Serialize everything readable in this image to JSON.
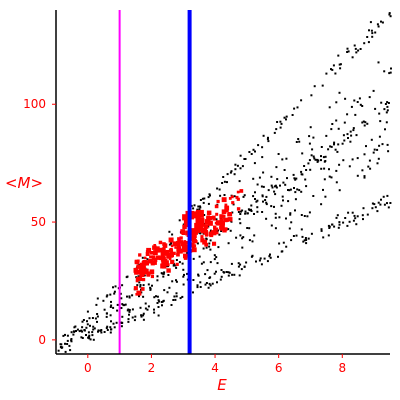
{
  "chart_data": {
    "type": "scatter",
    "xlabel": "E",
    "ylabel": "<M>",
    "xlim": [
      -1,
      9.5
    ],
    "ylim": [
      -6,
      140
    ],
    "x_ticks": [
      0,
      2,
      4,
      6,
      8
    ],
    "y_ticks": [
      0,
      50,
      100
    ],
    "grid": false,
    "colors": {
      "axis": "#000000",
      "ticks": "#ff0000",
      "gray_points": "#000000",
      "red_points": "#ff0000",
      "magenta_line": "#ff00ff",
      "blue_line": "#0000ff"
    },
    "vertical_lines": [
      {
        "x": 1.0,
        "color": "#ff00ff"
      },
      {
        "x": 3.2,
        "color": "#0000ff"
      }
    ],
    "series": [
      {
        "color": "#000000",
        "marker": "dot",
        "bands": [
          {
            "x0": -1.0,
            "y0": -4,
            "x1": 9.5,
            "y1": 140,
            "count": 150,
            "spread": 3
          },
          {
            "x0": -1.0,
            "y0": -4,
            "x1": 9.5,
            "y1": 100,
            "count": 170,
            "spread": 3
          },
          {
            "x0": -1.0,
            "y0": -4,
            "x1": 9.5,
            "y1": 60,
            "count": 170,
            "spread": 3
          },
          {
            "x0": 0.0,
            "y0": 5,
            "x1": 9.5,
            "y1": 85,
            "count": 180,
            "spread": 10
          },
          {
            "x0": 3.0,
            "y0": 40,
            "x1": 9.5,
            "y1": 115,
            "count": 90,
            "spread": 8
          }
        ]
      },
      {
        "color": "#ff0000",
        "marker": "square",
        "clusters": [
          {
            "x0": 1.5,
            "x1": 4.5,
            "y_base": 28,
            "slope": 8.5,
            "spread": 6,
            "count": 220,
            "size": [
              2.5,
              5
            ]
          },
          {
            "x0": 4.2,
            "x1": 5.0,
            "y_base": 55,
            "slope": 10,
            "spread": 6,
            "count": 10,
            "size": [
              2.5,
              4
            ]
          },
          {
            "x0": 3.0,
            "x1": 3.6,
            "y_base": 48,
            "slope": 8,
            "spread": 4,
            "count": 8,
            "size": [
              6,
              9
            ]
          }
        ]
      }
    ]
  }
}
